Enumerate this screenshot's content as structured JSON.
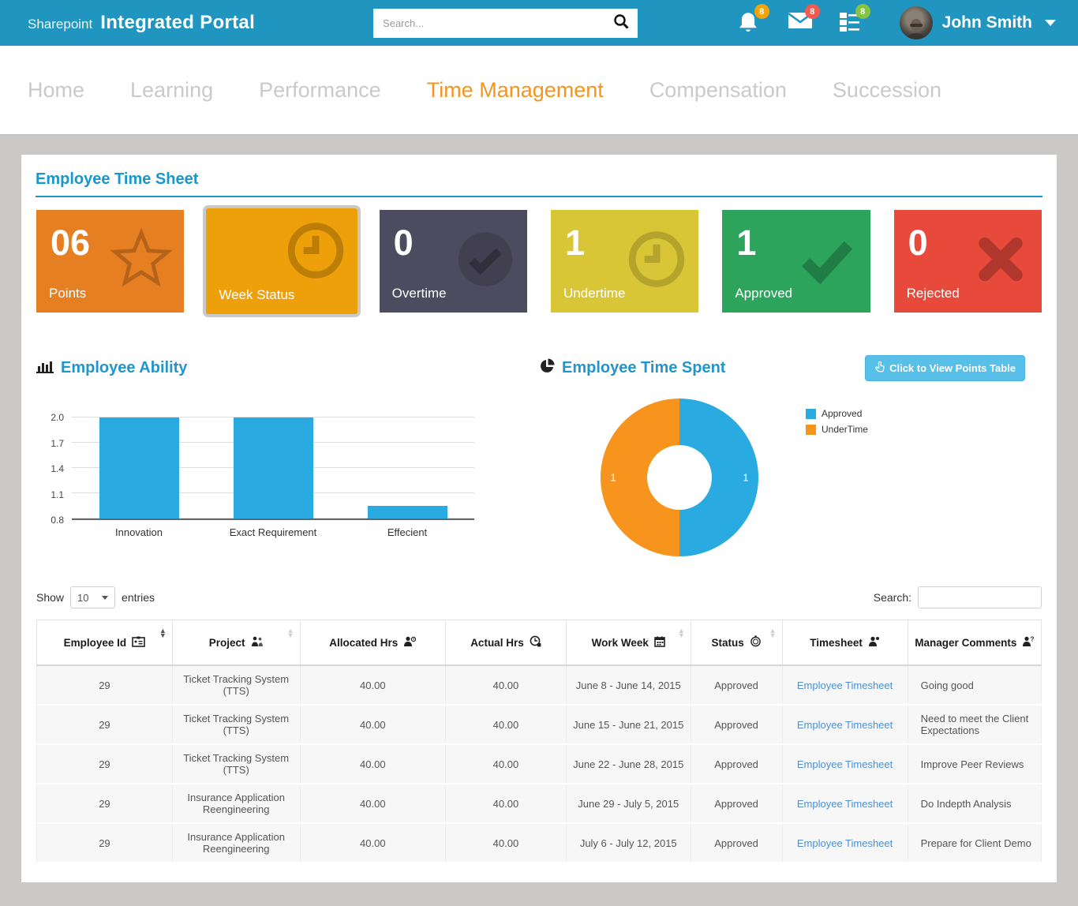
{
  "header": {
    "brand_prefix": "Sharepoint",
    "brand_title": "Integrated Portal",
    "search_placeholder": "Search...",
    "bell_count": "8",
    "mail_count": "8",
    "tasks_count": "8",
    "user_name": "John Smith"
  },
  "nav": {
    "items": [
      {
        "label": "Home",
        "active": false
      },
      {
        "label": "Learning",
        "active": false
      },
      {
        "label": "Performance",
        "active": false
      },
      {
        "label": "Time Management",
        "active": true
      },
      {
        "label": "Compensation",
        "active": false
      },
      {
        "label": "Succession",
        "active": false
      }
    ]
  },
  "page": {
    "section_title": "Employee Time Sheet"
  },
  "cards": [
    {
      "value": "06",
      "label": "Points",
      "color": "#e67e22",
      "icon": "star",
      "selected": false
    },
    {
      "value": "",
      "label": "Week Status",
      "color": "#eea00a",
      "icon": "clock",
      "selected": true
    },
    {
      "value": "0",
      "label": "Overtime",
      "color": "#4d4b5f",
      "icon": "check-circle",
      "selected": false
    },
    {
      "value": "1",
      "label": "Undertime",
      "color": "#d9c636",
      "icon": "clock",
      "selected": false
    },
    {
      "value": "1",
      "label": "Approved",
      "color": "#2ca45c",
      "icon": "check",
      "selected": false
    },
    {
      "value": "0",
      "label": "Rejected",
      "color": "#e7493a",
      "icon": "cross",
      "selected": false
    }
  ],
  "charts": {
    "ability_title": "Employee Ability",
    "time_spent_title": "Employee Time Spent",
    "points_button_label": "Click to View Points Table"
  },
  "chart_data": [
    {
      "type": "bar",
      "title": "Employee Ability",
      "categories": [
        "Innovation",
        "Exact Requirement",
        "Effecient"
      ],
      "values": [
        2.0,
        2.0,
        0.95
      ],
      "yticks": [
        0.8,
        1.1,
        1.4,
        1.7,
        2.0
      ],
      "ylim": [
        0.8,
        2.0
      ],
      "bar_color": "#29abe2",
      "grid": true,
      "legend_position": "none",
      "xlabel": "",
      "ylabel": ""
    },
    {
      "type": "pie",
      "title": "Employee Time Spent",
      "donut": true,
      "labels": [
        "Approved",
        "UnderTime"
      ],
      "values": [
        1,
        1
      ],
      "colors": [
        "#29abe2",
        "#f7941e"
      ],
      "data_labels": [
        "1",
        "1"
      ],
      "legend_position": "right"
    }
  ],
  "table_controls": {
    "show_label": "Show",
    "page_size": "10",
    "entries_label": "entries",
    "search_label": "Search:",
    "search_value": ""
  },
  "table": {
    "columns": [
      {
        "label": "Employee Id"
      },
      {
        "label": "Project"
      },
      {
        "label": "Allocated Hrs"
      },
      {
        "label": "Actual Hrs"
      },
      {
        "label": "Work Week"
      },
      {
        "label": "Status"
      },
      {
        "label": "Timesheet"
      },
      {
        "label": "Manager Comments"
      }
    ],
    "fields": [
      "employee_id",
      "project",
      "allocated",
      "actual",
      "week",
      "status",
      "timesheet",
      "comments"
    ],
    "link_field": "timesheet",
    "rows": [
      {
        "employee_id": "29",
        "project": "Ticket Tracking System (TTS)",
        "allocated": "40.00",
        "actual": "40.00",
        "week": "June 8 - June 14, 2015",
        "status": "Approved",
        "timesheet": "Employee Timesheet",
        "comments": "Going good"
      },
      {
        "employee_id": "29",
        "project": "Ticket Tracking System (TTS)",
        "allocated": "40.00",
        "actual": "40.00",
        "week": "June 15 - June 21, 2015",
        "status": "Approved",
        "timesheet": "Employee Timesheet",
        "comments": "Need to meet the Client Expectations"
      },
      {
        "employee_id": "29",
        "project": "Ticket Tracking System (TTS)",
        "allocated": "40.00",
        "actual": "40.00",
        "week": "June 22 - June 28, 2015",
        "status": "Approved",
        "timesheet": "Employee Timesheet",
        "comments": "Improve Peer Reviews"
      },
      {
        "employee_id": "29",
        "project": "Insurance Application Reengineering",
        "allocated": "40.00",
        "actual": "40.00",
        "week": "June 29 - July 5, 2015",
        "status": "Approved",
        "timesheet": "Employee Timesheet",
        "comments": "Do Indepth Analysis"
      },
      {
        "employee_id": "29",
        "project": "Insurance Application Reengineering",
        "allocated": "40.00",
        "actual": "40.00",
        "week": "July 6 - July 12, 2015",
        "status": "Approved",
        "timesheet": "Employee Timesheet",
        "comments": "Prepare for Client Demo"
      }
    ]
  }
}
